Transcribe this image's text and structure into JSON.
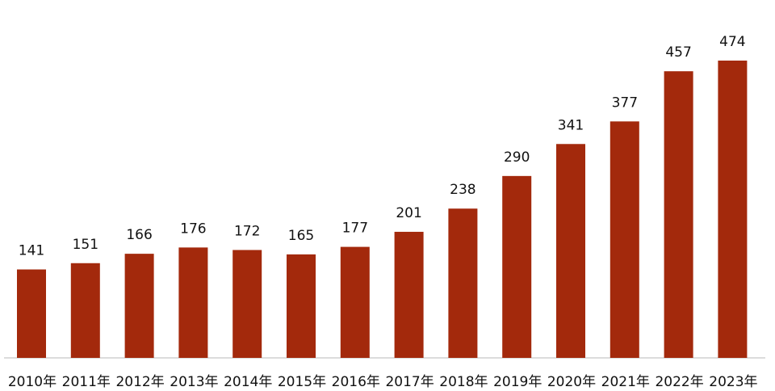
{
  "chart_data": {
    "type": "bar",
    "categories": [
      "2010年",
      "2011年",
      "2012年",
      "2013年",
      "2014年",
      "2015年",
      "2016年",
      "2017年",
      "2018年",
      "2019年",
      "2020年",
      "2021年",
      "2022年",
      "2023年"
    ],
    "values": [
      141,
      151,
      166,
      176,
      172,
      165,
      177,
      201,
      238,
      290,
      341,
      377,
      457,
      474
    ],
    "color": "#a3290c"
  }
}
